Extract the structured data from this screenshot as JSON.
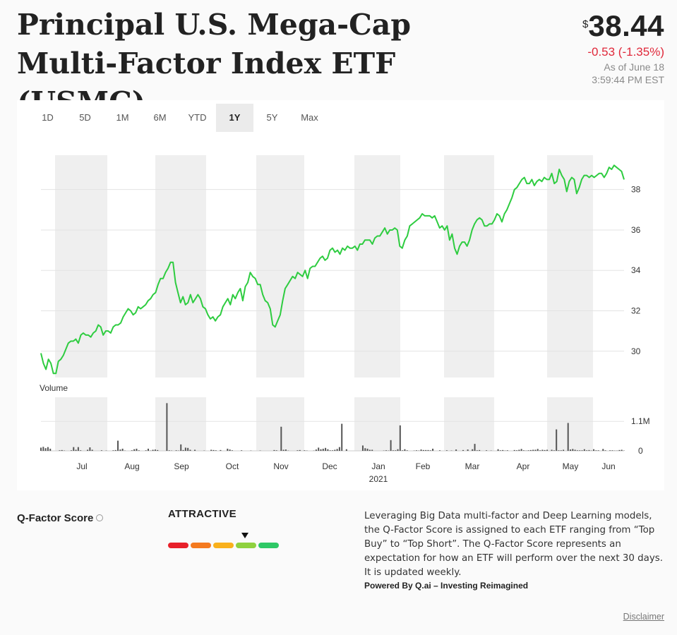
{
  "header": {
    "title": "Principal U.S. Mega-Cap Multi-Factor Index ETF (USMC)",
    "currency_symbol": "$",
    "price": "38.44",
    "change": "-0.53 (-1.35%)",
    "as_of_date": "As of June 18",
    "as_of_time": "3:59:44 PM EST"
  },
  "tabs": [
    "1D",
    "5D",
    "1M",
    "6M",
    "YTD",
    "1Y",
    "5Y",
    "Max"
  ],
  "active_tab": "1Y",
  "colors": {
    "line": "#2ecc40",
    "negative": "#e0283a",
    "band": "#efefef",
    "volume": "#555555"
  },
  "chart_data": [
    {
      "type": "line",
      "series": [
        {
          "values": [
            29.9,
            29.4,
            29.1,
            29.6,
            29.4,
            28.9,
            28.9,
            29.5,
            29.6,
            29.8,
            30.1,
            30.4,
            30.5,
            30.5,
            30.6,
            30.4,
            30.8,
            30.9,
            30.8,
            30.8,
            30.7,
            30.9,
            31.0,
            31.3,
            31.2,
            30.8,
            31.0,
            31.0,
            30.9,
            31.2,
            31.3,
            31.3,
            31.4,
            31.7,
            31.9,
            32.1,
            32.0,
            31.8,
            31.9,
            32.2,
            32.1,
            32.2,
            32.3,
            32.5,
            32.6,
            32.8,
            32.9,
            33.3,
            33.6,
            33.6,
            33.9,
            34.1,
            34.4,
            34.4,
            33.4,
            32.9,
            32.4,
            32.7,
            32.3,
            32.4,
            32.8,
            32.4,
            32.6,
            32.8,
            32.6,
            32.2,
            32.1,
            31.8,
            31.6,
            31.7,
            31.5,
            31.7,
            31.8,
            32.2,
            32.4,
            32.6,
            32.3,
            32.8,
            32.6,
            32.9,
            33.1,
            32.5,
            33.2,
            33.4,
            33.9,
            33.7,
            33.6,
            33.3,
            33.3,
            32.8,
            32.5,
            32.4,
            32.1,
            31.3,
            31.2,
            31.5,
            31.8,
            32.5,
            33.1,
            33.3,
            33.5,
            33.7,
            33.6,
            33.9,
            33.8,
            33.7,
            34.0,
            33.6,
            34.1,
            34.2,
            34.2,
            34.4,
            34.6,
            34.7,
            34.5,
            34.6,
            35.0,
            35.1,
            34.9,
            35.0,
            34.8,
            35.1,
            35.0,
            35.2,
            35.1,
            35.1,
            35.2,
            35.0,
            35.3,
            35.3,
            35.5,
            35.5,
            35.5,
            35.3,
            35.6,
            35.7,
            35.7,
            35.9,
            36.1,
            35.8,
            36.0,
            36.0,
            36.1,
            36.0,
            35.2,
            35.1,
            35.5,
            35.7,
            36.2,
            36.3,
            36.4,
            36.5,
            36.6,
            36.8,
            36.7,
            36.7,
            36.7,
            36.6,
            36.7,
            36.4,
            36.1,
            36.2,
            36.0,
            36.2,
            35.5,
            35.8,
            35.1,
            34.8,
            35.2,
            35.4,
            35.4,
            35.2,
            35.5,
            36.0,
            36.3,
            36.5,
            36.6,
            36.5,
            36.2,
            36.2,
            36.3,
            36.3,
            36.5,
            36.8,
            36.7,
            36.4,
            36.8,
            37.0,
            37.3,
            37.6,
            38.0,
            38.1,
            38.3,
            38.5,
            38.6,
            38.3,
            38.3,
            38.5,
            38.2,
            38.4,
            38.5,
            38.4,
            38.6,
            38.5,
            38.5,
            38.8,
            38.3,
            38.4,
            39.0,
            38.7,
            38.5,
            37.9,
            38.4,
            38.6,
            38.5,
            37.8,
            38.1,
            38.5,
            38.7,
            38.7,
            38.6,
            38.7,
            38.6,
            38.7,
            38.8,
            38.8,
            38.6,
            38.8,
            39.1,
            39.0,
            39.2,
            39.1,
            39.0,
            38.9,
            38.5
          ]
        }
      ],
      "x_labels": [
        "Jul",
        "Aug",
        "Sep",
        "Oct",
        "Nov",
        "Dec",
        "Jan",
        "Feb",
        "Mar",
        "Apr",
        "May",
        "Jun"
      ],
      "x_sublabel": "2021",
      "y_ticks": [
        30,
        32,
        34,
        36,
        38
      ],
      "ylim": [
        28.7,
        39.7
      ],
      "grid": true
    },
    {
      "type": "bar",
      "title": "Volume",
      "y_tick_labels": [
        "1.1M",
        "0"
      ],
      "values": [
        0.12,
        0.15,
        0.1,
        0.14,
        0.08,
        0,
        0,
        0,
        0.02,
        0.03,
        0.01,
        0,
        0,
        0.02,
        0.14,
        0.04,
        0.14,
        0.02,
        0,
        0,
        0.04,
        0.13,
        0.04,
        0,
        0,
        0,
        0.02,
        0,
        0.01,
        0,
        0,
        0.02,
        0.03,
        0.38,
        0.05,
        0.08,
        0.01,
        0,
        0,
        0.02,
        0.06,
        0.08,
        0.02,
        0,
        0,
        0.02,
        0.08,
        0.01,
        0.04,
        0.05,
        0.03,
        0,
        0,
        0,
        1.78,
        0.02,
        0.01,
        0,
        0.02,
        0.01,
        0.24,
        0.03,
        0.12,
        0.11,
        0.04,
        0,
        0.04,
        0,
        0,
        0,
        0.01,
        0,
        0,
        0.04,
        0.03,
        0.02,
        0,
        0.03,
        0,
        0,
        0.08,
        0.05,
        0.02,
        0,
        0,
        0,
        0.02,
        0,
        0,
        0,
        0.01,
        0,
        0,
        0,
        0.01,
        0,
        0,
        0,
        0,
        0,
        0.03,
        0.02,
        0,
        0.9,
        0.04,
        0.05,
        0.01,
        0,
        0,
        0,
        0.02,
        0.03,
        0,
        0.02,
        0.01,
        0,
        0,
        0.01,
        0.05,
        0.12,
        0.06,
        0.08,
        0.11,
        0.06,
        0.02,
        0.02,
        0.04,
        0.07,
        0.14,
        1.01,
        0,
        0.06,
        0,
        0,
        0,
        0,
        0,
        0,
        0.2,
        0.1,
        0.08,
        0.04,
        0.04,
        0,
        0,
        0,
        0,
        0.01,
        0.02,
        0.01,
        0.4,
        0.02,
        0.02,
        0.06,
        0.95,
        0.02,
        0.06,
        0.02,
        0,
        0,
        0.01,
        0.02,
        0.01,
        0.05,
        0.03,
        0.03,
        0.03,
        0.02,
        0.08,
        0,
        0,
        0.02,
        0,
        0,
        0.02,
        0,
        0.01,
        0,
        0.05,
        0,
        0,
        0.03,
        0,
        0.05,
        0,
        0.06,
        0.26,
        0.02,
        0.03,
        0,
        0,
        0.02,
        0,
        0.01,
        0,
        0,
        0.06,
        0.02,
        0.03,
        0.01,
        0.02,
        0,
        0,
        0.03,
        0.02,
        0.04,
        0.07,
        0.02,
        0.01,
        0.02,
        0.03,
        0.04,
        0.04,
        0.07,
        0.02,
        0.04,
        0.03,
        0.04,
        0,
        0.04,
        0.02,
        0.8,
        0.02,
        0.02,
        0.04,
        0,
        1.04,
        0.05,
        0.07,
        0.04,
        0.02,
        0.02,
        0.02,
        0.06,
        0.02,
        0.03,
        0.01,
        0.06,
        0.02,
        0.02,
        0,
        0.07,
        0.02,
        0,
        0.02,
        0.02,
        0.01,
        0.01,
        0.03,
        0.04,
        0.01
      ]
    }
  ],
  "qfactor": {
    "label": "Q-Factor Score",
    "rating": "ATTRACTIVE",
    "scale_colors": [
      "#e8202a",
      "#f47a1f",
      "#f9b11c",
      "#8fd13f",
      "#2ec866"
    ],
    "selected_index": 3,
    "description": "Leveraging Big Data multi-factor and Deep Learning models, the Q-Factor Score is assigned to each ETF ranging from “Top Buy” to “Top Short”. The Q-Factor Score represents an expectation for how an ETF will perform over the next 30 days. It is updated weekly.",
    "powered_by": "Powered By Q.ai – Investing Reimagined",
    "disclaimer": "Disclaimer"
  }
}
